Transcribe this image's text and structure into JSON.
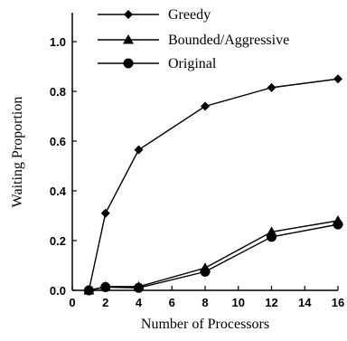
{
  "chart_data": {
    "type": "line",
    "title": "",
    "xlabel": "Number of Processors",
    "ylabel": "Waiting Proportion",
    "xlim": [
      0,
      16
    ],
    "ylim": [
      0,
      1.1
    ],
    "x_ticks": [
      "0",
      "2",
      "4",
      "6",
      "8",
      "10",
      "12",
      "14",
      "16"
    ],
    "y_ticks": [
      "0.0",
      "0.2",
      "0.4",
      "0.6",
      "0.8",
      "1.0"
    ],
    "grid": false,
    "legend_placement": "top",
    "series": [
      {
        "name": "Greedy",
        "marker": "diamond",
        "x": [
          1,
          2,
          4,
          8,
          12,
          16
        ],
        "y": [
          0.0,
          0.31,
          0.565,
          0.74,
          0.815,
          0.85
        ]
      },
      {
        "name": "Bounded/Aggressive",
        "marker": "triangle",
        "x": [
          1,
          2,
          4,
          8,
          12,
          16
        ],
        "y": [
          0.0,
          0.015,
          0.015,
          0.09,
          0.235,
          0.28
        ]
      },
      {
        "name": "Original",
        "marker": "circle",
        "x": [
          1,
          2,
          4,
          8,
          12,
          16
        ],
        "y": [
          0.0,
          0.013,
          0.01,
          0.075,
          0.215,
          0.265
        ]
      }
    ]
  }
}
